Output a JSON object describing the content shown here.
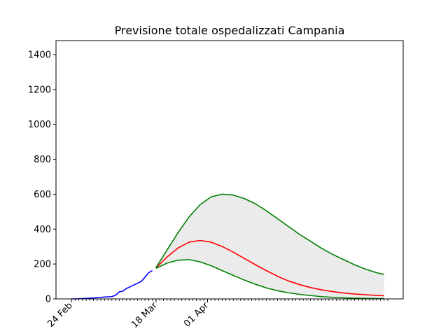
{
  "chart_data": {
    "type": "line",
    "title": "Previsione totale ospedalizzati Campania",
    "xlabel": "",
    "ylabel": "",
    "x_range": [
      "2020-02-24",
      "2020-05-20"
    ],
    "ylim": [
      0,
      1480
    ],
    "yticks": [
      0,
      200,
      400,
      600,
      800,
      1000,
      1200,
      1400
    ],
    "xticks": [
      {
        "date": "2020-02-24",
        "label": "24 Feb"
      },
      {
        "date": "2020-03-18",
        "label": "18 Mar"
      },
      {
        "date": "2020-04-01",
        "label": "01 Apr"
      }
    ],
    "grid": false,
    "legend": "none",
    "band": {
      "color": "#ebebeb",
      "x": [
        "2020-03-18",
        "2020-03-21",
        "2020-03-24",
        "2020-03-27",
        "2020-03-30",
        "2020-04-02",
        "2020-04-05",
        "2020-04-08",
        "2020-04-11",
        "2020-04-14",
        "2020-04-17",
        "2020-04-20",
        "2020-04-23",
        "2020-04-26",
        "2020-04-29",
        "2020-05-02",
        "2020-05-05",
        "2020-05-08",
        "2020-05-11",
        "2020-05-14",
        "2020-05-17",
        "2020-05-19"
      ],
      "lower": [
        175,
        205,
        222,
        225,
        212,
        190,
        162,
        135,
        108,
        84,
        63,
        47,
        35,
        26,
        19,
        13,
        9,
        6,
        4,
        3,
        2,
        2
      ],
      "upper": [
        180,
        280,
        380,
        470,
        540,
        585,
        600,
        595,
        575,
        545,
        505,
        460,
        415,
        370,
        330,
        290,
        255,
        225,
        195,
        170,
        150,
        140
      ]
    },
    "series": [
      {
        "color": "#0000ff",
        "x": [
          "2020-02-24",
          "2020-02-25",
          "2020-02-26",
          "2020-02-27",
          "2020-02-28",
          "2020-02-29",
          "2020-03-01",
          "2020-03-02",
          "2020-03-03",
          "2020-03-04",
          "2020-03-05",
          "2020-03-06",
          "2020-03-07",
          "2020-03-08",
          "2020-03-09",
          "2020-03-10",
          "2020-03-11",
          "2020-03-12",
          "2020-03-13",
          "2020-03-14",
          "2020-03-15",
          "2020-03-16",
          "2020-03-17"
        ],
        "y": [
          0,
          0,
          1,
          2,
          3,
          4,
          5,
          7,
          9,
          11,
          12,
          13,
          21,
          40,
          45,
          60,
          70,
          80,
          90,
          100,
          125,
          150,
          162
        ]
      },
      {
        "color": "#ff0000",
        "x": [
          "2020-03-18",
          "2020-03-21",
          "2020-03-24",
          "2020-03-27",
          "2020-03-30",
          "2020-04-02",
          "2020-04-05",
          "2020-04-08",
          "2020-04-11",
          "2020-04-14",
          "2020-04-17",
          "2020-04-20",
          "2020-04-23",
          "2020-04-26",
          "2020-04-29",
          "2020-05-02",
          "2020-05-05",
          "2020-05-08",
          "2020-05-11",
          "2020-05-14",
          "2020-05-17",
          "2020-05-19"
        ],
        "y": [
          178,
          240,
          292,
          325,
          335,
          325,
          300,
          268,
          232,
          196,
          162,
          130,
          103,
          82,
          65,
          52,
          42,
          34,
          28,
          24,
          20,
          18
        ]
      },
      {
        "color": "#008000",
        "x": [
          "2020-03-18",
          "2020-03-21",
          "2020-03-24",
          "2020-03-27",
          "2020-03-30",
          "2020-04-02",
          "2020-04-05",
          "2020-04-08",
          "2020-04-11",
          "2020-04-14",
          "2020-04-17",
          "2020-04-20",
          "2020-04-23",
          "2020-04-26",
          "2020-04-29",
          "2020-05-02",
          "2020-05-05",
          "2020-05-08",
          "2020-05-11",
          "2020-05-14",
          "2020-05-17",
          "2020-05-19"
        ],
        "y": [
          180,
          280,
          380,
          470,
          540,
          585,
          600,
          595,
          575,
          545,
          505,
          460,
          415,
          370,
          330,
          290,
          255,
          225,
          195,
          170,
          150,
          140
        ]
      },
      {
        "color": "#008000",
        "x": [
          "2020-03-18",
          "2020-03-21",
          "2020-03-24",
          "2020-03-27",
          "2020-03-30",
          "2020-04-02",
          "2020-04-05",
          "2020-04-08",
          "2020-04-11",
          "2020-04-14",
          "2020-04-17",
          "2020-04-20",
          "2020-04-23",
          "2020-04-26",
          "2020-04-29",
          "2020-05-02",
          "2020-05-05",
          "2020-05-08",
          "2020-05-11",
          "2020-05-14",
          "2020-05-17",
          "2020-05-19"
        ],
        "y": [
          175,
          205,
          222,
          225,
          212,
          190,
          162,
          135,
          108,
          84,
          63,
          47,
          35,
          26,
          19,
          13,
          9,
          6,
          4,
          3,
          2,
          2
        ]
      }
    ]
  }
}
